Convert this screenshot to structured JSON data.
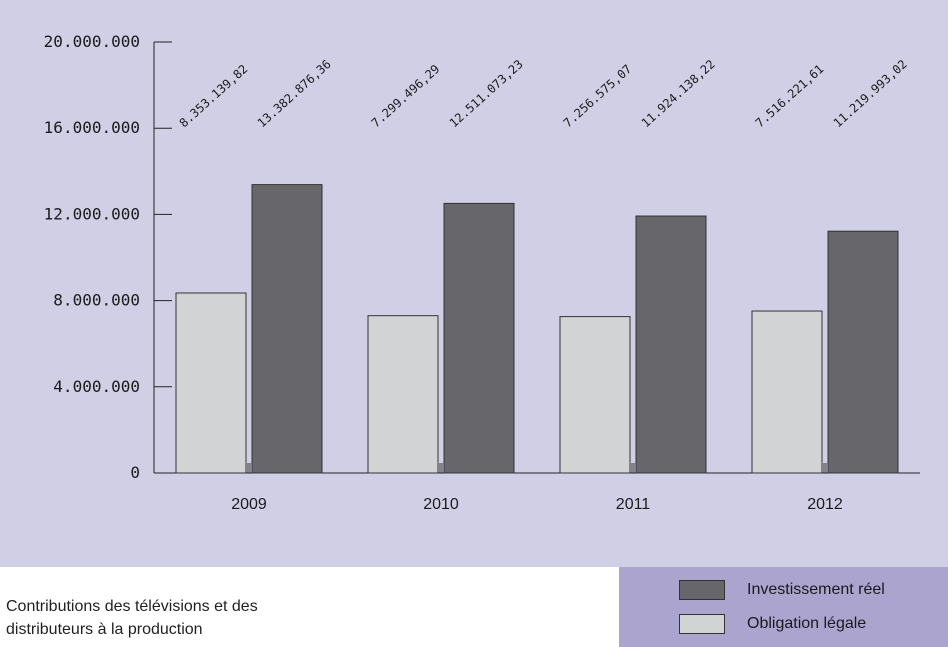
{
  "caption": {
    "line1": "Contributions des télévisions et des",
    "line2": "distributeurs à la production"
  },
  "legend": [
    {
      "label": "Investissement réel",
      "color": "#67676b"
    },
    {
      "label": "Obligation légale",
      "color": "#d2d3d5"
    }
  ],
  "colors": {
    "panel_background": "#d1cfe6",
    "legend_background": "#aba4cf"
  },
  "chart_data": {
    "type": "bar",
    "categories": [
      "2009",
      "2010",
      "2011",
      "2012"
    ],
    "series": [
      {
        "name": "Obligation légale",
        "values": [
          8353139.82,
          7299496.29,
          7256575.07,
          7516221.61
        ],
        "labels": [
          "8.353.139,82",
          "7.299.496,29",
          "7.256.575,07",
          "7.516.221,61"
        ],
        "color": "#d2d3d5"
      },
      {
        "name": "Investissement réel",
        "values": [
          13382876.36,
          12511073.23,
          11924138.22,
          11219993.02
        ],
        "labels": [
          "13.382.876,36",
          "12.511.073,23",
          "11.924.138,22",
          "11.219.993,02"
        ],
        "color": "#67676b"
      }
    ],
    "yticks": [
      0,
      4000000,
      8000000,
      12000000,
      16000000,
      20000000
    ],
    "ytick_labels": [
      "0",
      "4.000.000",
      "8.000.000",
      "12.000.000",
      "16.000.000",
      "20.000.000"
    ],
    "ylim": [
      0,
      20000000
    ],
    "xlabel": "",
    "ylabel": "",
    "grid": false,
    "legend_position": "bottom-right"
  }
}
